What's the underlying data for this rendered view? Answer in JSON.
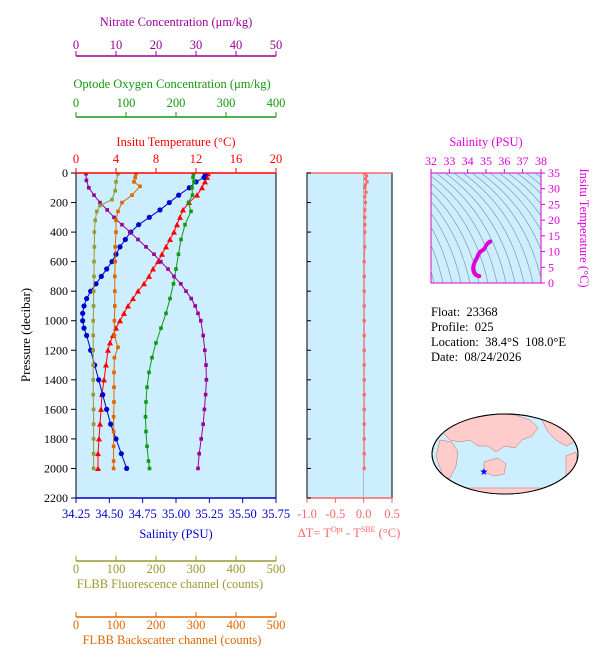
{
  "info": {
    "float": "Float:  23368",
    "profile": "Profile:  025",
    "location": "Location:  38.4°S  108.0°E",
    "date": "Date:  08/24/2026"
  },
  "colors": {
    "temperature": "#ff0000",
    "salinity": "#0000cc",
    "oxygen": "#119911",
    "nitrate": "#990099",
    "fluorescence": "#999933",
    "backscatter": "#dd6600",
    "deltaT": "#ff6666",
    "ts_axis": "#dd00dd",
    "panel_bg": "#cceeff"
  },
  "chart_data": [
    {
      "type": "line",
      "title": "",
      "ylabel": "Pressure (decibar)",
      "ylim": [
        2200,
        0
      ],
      "yticks": [
        0,
        200,
        400,
        600,
        800,
        1000,
        1200,
        1400,
        1600,
        1800,
        2000,
        2200
      ],
      "axes": {
        "temperature": {
          "label": "Insitu Temperature (°C)",
          "range": [
            0,
            20
          ],
          "ticks": [
            0,
            4,
            8,
            12,
            16,
            20
          ]
        },
        "salinity": {
          "label": "Salinity (PSU)",
          "range": [
            34.25,
            35.75
          ],
          "ticks": [
            "34.25",
            "34.50",
            "34.75",
            "35.00",
            "35.25",
            "35.50",
            "35.75"
          ]
        },
        "nitrate": {
          "label": "Nitrate Concentration (μm/kg)",
          "range": [
            0,
            50
          ],
          "ticks": [
            0,
            10,
            20,
            30,
            40,
            50
          ]
        },
        "oxygen": {
          "label": "Optode Oxygen Concentration (μm/kg)",
          "range": [
            0,
            400
          ],
          "ticks": [
            0,
            100,
            200,
            300,
            400
          ]
        },
        "fluorescence": {
          "label": "FLBB Fluorescence channel (counts)",
          "range": [
            0,
            500
          ],
          "ticks": [
            0,
            100,
            200,
            300,
            400,
            500
          ]
        },
        "backscatter": {
          "label": "FLBB Backscatter channel (counts)",
          "range": [
            0,
            500
          ],
          "ticks": [
            0,
            100,
            200,
            300,
            400,
            500
          ]
        }
      },
      "series": [
        {
          "key": "temperature",
          "marker": "triangle",
          "values": [
            [
              13.2,
              5
            ],
            [
              13.1,
              30
            ],
            [
              12.9,
              60
            ],
            [
              12.6,
              100
            ],
            [
              12.1,
              150
            ],
            [
              11.3,
              200
            ],
            [
              10.7,
              250
            ],
            [
              10.4,
              300
            ],
            [
              10.1,
              350
            ],
            [
              9.8,
              400
            ],
            [
              9.4,
              450
            ],
            [
              9.0,
              500
            ],
            [
              8.6,
              550
            ],
            [
              8.2,
              600
            ],
            [
              7.7,
              650
            ],
            [
              7.3,
              700
            ],
            [
              6.8,
              750
            ],
            [
              6.2,
              800
            ],
            [
              5.7,
              850
            ],
            [
              5.2,
              900
            ],
            [
              4.8,
              950
            ],
            [
              4.4,
              1000
            ],
            [
              4.0,
              1050
            ],
            [
              3.7,
              1100
            ],
            [
              3.4,
              1150
            ],
            [
              3.2,
              1200
            ],
            [
              3.0,
              1300
            ],
            [
              2.8,
              1400
            ],
            [
              2.6,
              1500
            ],
            [
              2.5,
              1600
            ],
            [
              2.4,
              1700
            ],
            [
              2.3,
              1800
            ],
            [
              2.2,
              1900
            ],
            [
              2.2,
              2000
            ]
          ]
        },
        {
          "key": "salinity",
          "marker": "circle",
          "values": [
            [
              35.22,
              5
            ],
            [
              35.21,
              30
            ],
            [
              35.15,
              60
            ],
            [
              35.1,
              100
            ],
            [
              35.02,
              150
            ],
            [
              34.95,
              200
            ],
            [
              34.88,
              250
            ],
            [
              34.8,
              300
            ],
            [
              34.72,
              350
            ],
            [
              34.66,
              400
            ],
            [
              34.62,
              450
            ],
            [
              34.58,
              500
            ],
            [
              34.55,
              550
            ],
            [
              34.52,
              600
            ],
            [
              34.48,
              650
            ],
            [
              34.44,
              700
            ],
            [
              34.4,
              750
            ],
            [
              34.36,
              800
            ],
            [
              34.33,
              850
            ],
            [
              34.31,
              900
            ],
            [
              34.3,
              950
            ],
            [
              34.3,
              1000
            ],
            [
              34.31,
              1050
            ],
            [
              34.33,
              1100
            ],
            [
              34.36,
              1200
            ],
            [
              34.39,
              1300
            ],
            [
              34.42,
              1400
            ],
            [
              34.45,
              1500
            ],
            [
              34.48,
              1600
            ],
            [
              34.51,
              1700
            ],
            [
              34.55,
              1800
            ],
            [
              34.59,
              1900
            ],
            [
              34.63,
              2000
            ]
          ]
        },
        {
          "key": "oxygen",
          "marker": "square",
          "values": [
            [
              235,
              5
            ],
            [
              234,
              30
            ],
            [
              236,
              60
            ],
            [
              232,
              100
            ],
            [
              233,
              150
            ],
            [
              225,
              200
            ],
            [
              230,
              260
            ],
            [
              218,
              350
            ],
            [
              210,
              450
            ],
            [
              205,
              550
            ],
            [
              200,
              650
            ],
            [
              195,
              750
            ],
            [
              188,
              850
            ],
            [
              180,
              950
            ],
            [
              170,
              1050
            ],
            [
              160,
              1150
            ],
            [
              152,
              1250
            ],
            [
              146,
              1350
            ],
            [
              142,
              1450
            ],
            [
              140,
              1550
            ],
            [
              139,
              1650
            ],
            [
              140,
              1750
            ],
            [
              142,
              1850
            ],
            [
              145,
              1950
            ],
            [
              147,
              2000
            ]
          ]
        },
        {
          "key": "nitrate",
          "marker": "square",
          "values": [
            [
              2.5,
              5
            ],
            [
              2.6,
              50
            ],
            [
              3.2,
              100
            ],
            [
              4.5,
              150
            ],
            [
              6.0,
              200
            ],
            [
              7.8,
              250
            ],
            [
              9.5,
              300
            ],
            [
              11.5,
              350
            ],
            [
              13.5,
              400
            ],
            [
              15.5,
              450
            ],
            [
              17.5,
              500
            ],
            [
              19.5,
              550
            ],
            [
              21.2,
              600
            ],
            [
              23.0,
              650
            ],
            [
              24.5,
              700
            ],
            [
              26.2,
              750
            ],
            [
              27.5,
              800
            ],
            [
              28.8,
              850
            ],
            [
              29.8,
              900
            ],
            [
              30.5,
              950
            ],
            [
              31.2,
              1000
            ],
            [
              31.8,
              1100
            ],
            [
              32.2,
              1200
            ],
            [
              32.5,
              1300
            ],
            [
              32.6,
              1400
            ],
            [
              32.4,
              1500
            ],
            [
              32.1,
              1600
            ],
            [
              31.8,
              1700
            ],
            [
              31.3,
              1800
            ],
            [
              30.8,
              1900
            ],
            [
              30.5,
              2000
            ]
          ]
        },
        {
          "key": "fluorescence",
          "marker": "square",
          "values": [
            [
              105,
              5
            ],
            [
              100,
              60
            ],
            [
              98,
              120
            ],
            [
              90,
              180
            ],
            [
              60,
              220
            ],
            [
              52,
              260
            ],
            [
              48,
              320
            ],
            [
              46,
              400
            ],
            [
              46,
              500
            ],
            [
              45,
              600
            ],
            [
              45,
              700
            ],
            [
              44,
              800
            ],
            [
              44,
              900
            ],
            [
              43,
              1000
            ],
            [
              43,
              1100
            ],
            [
              43,
              1200
            ],
            [
              43,
              1300
            ],
            [
              43,
              1400
            ],
            [
              43,
              1500
            ],
            [
              44,
              1600
            ],
            [
              44,
              1700
            ],
            [
              44,
              1800
            ],
            [
              44,
              1900
            ],
            [
              44,
              2000
            ]
          ]
        },
        {
          "key": "backscatter",
          "marker": "square",
          "values": [
            [
              150,
              5
            ],
            [
              148,
              30
            ],
            [
              145,
              60
            ],
            [
              160,
              90
            ],
            [
              140,
              150
            ],
            [
              115,
              200
            ],
            [
              105,
              260
            ],
            [
              100,
              320
            ],
            [
              100,
              400
            ],
            [
              98,
              500
            ],
            [
              98,
              600
            ],
            [
              97,
              700
            ],
            [
              97,
              800
            ],
            [
              97,
              900
            ],
            [
              96,
              1000
            ],
            [
              96,
              1100
            ],
            [
              105,
              1180
            ],
            [
              96,
              1250
            ],
            [
              95,
              1350
            ],
            [
              95,
              1450
            ],
            [
              95,
              1550
            ],
            [
              94,
              1650
            ],
            [
              94,
              1750
            ],
            [
              94,
              1850
            ],
            [
              94,
              1950
            ],
            [
              94,
              2000
            ]
          ]
        }
      ]
    },
    {
      "type": "line",
      "title": "",
      "xlabel": "ΔT= T",
      "xlabel_sup1": "Opt",
      "xlabel_mid": " - T",
      "xlabel_sup2": "SBE",
      "xlabel_tail": " (°C)",
      "xlim": [
        -1.0,
        0.5
      ],
      "xticks": [
        "-1.0",
        "-0.5",
        "0.0",
        "0.5"
      ],
      "ylim": [
        2200,
        0
      ],
      "values": [
        [
          0.02,
          5
        ],
        [
          0.05,
          20
        ],
        [
          0.03,
          40
        ],
        [
          0.06,
          60
        ],
        [
          0.03,
          80
        ],
        [
          0.02,
          100
        ],
        [
          0.04,
          130
        ],
        [
          0.02,
          160
        ],
        [
          0.03,
          200
        ],
        [
          0.02,
          250
        ],
        [
          0.02,
          300
        ],
        [
          0.02,
          350
        ],
        [
          0.02,
          400
        ],
        [
          0.02,
          500
        ],
        [
          0.01,
          600
        ],
        [
          0.01,
          700
        ],
        [
          0.01,
          800
        ],
        [
          0.01,
          900
        ],
        [
          0.01,
          1000
        ],
        [
          0.01,
          1100
        ],
        [
          0.01,
          1200
        ],
        [
          0.01,
          1300
        ],
        [
          0.01,
          1400
        ],
        [
          0.01,
          1500
        ],
        [
          0.01,
          1600
        ],
        [
          0.01,
          1700
        ],
        [
          0.01,
          1800
        ],
        [
          0.01,
          1900
        ],
        [
          0.01,
          2000
        ]
      ]
    },
    {
      "type": "scatter",
      "title": "",
      "xlabel": "Salinity (PSU)",
      "ylabel": "Insitu Temperature (°C)",
      "xlim": [
        32,
        38
      ],
      "xticks": [
        32,
        33,
        34,
        35,
        36,
        37,
        38
      ],
      "ylim": [
        0,
        35
      ],
      "yticks": [
        0,
        5,
        10,
        15,
        20,
        25,
        30,
        35
      ],
      "values": [
        [
          35.22,
          13.2
        ],
        [
          35.21,
          13.1
        ],
        [
          35.15,
          12.9
        ],
        [
          35.1,
          12.6
        ],
        [
          35.02,
          12.1
        ],
        [
          34.95,
          11.3
        ],
        [
          34.88,
          10.7
        ],
        [
          34.8,
          10.4
        ],
        [
          34.72,
          10.1
        ],
        [
          34.66,
          9.8
        ],
        [
          34.62,
          9.4
        ],
        [
          34.58,
          9.0
        ],
        [
          34.55,
          8.6
        ],
        [
          34.52,
          8.2
        ],
        [
          34.48,
          7.7
        ],
        [
          34.44,
          7.3
        ],
        [
          34.4,
          6.8
        ],
        [
          34.36,
          6.2
        ],
        [
          34.33,
          5.7
        ],
        [
          34.31,
          5.2
        ],
        [
          34.3,
          4.8
        ],
        [
          34.3,
          4.4
        ],
        [
          34.31,
          4.0
        ],
        [
          34.33,
          3.7
        ],
        [
          34.36,
          3.2
        ],
        [
          34.39,
          3.0
        ],
        [
          34.42,
          2.8
        ],
        [
          34.45,
          2.6
        ],
        [
          34.48,
          2.5
        ],
        [
          34.51,
          2.4
        ],
        [
          34.55,
          2.3
        ],
        [
          34.59,
          2.2
        ],
        [
          34.63,
          2.2
        ]
      ]
    },
    {
      "type": "map",
      "title": "",
      "location": {
        "lat": -38.4,
        "lon": 108.0
      }
    }
  ]
}
